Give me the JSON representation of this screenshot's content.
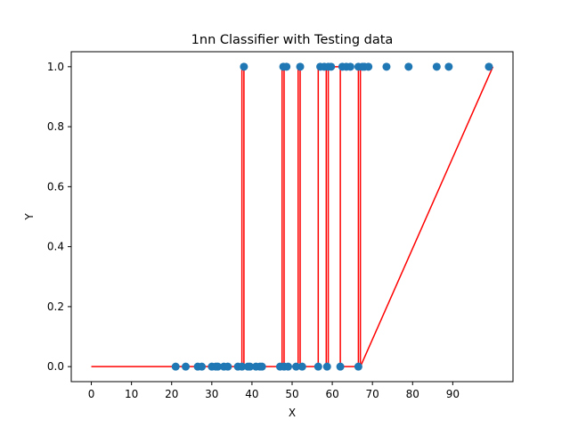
{
  "chart_data": {
    "type": "line",
    "title": "1nn Classifier with Testing data",
    "xlabel": "X",
    "ylabel": "Y",
    "xlim": [
      -5,
      105
    ],
    "ylim": [
      -0.05,
      1.05
    ],
    "xticks": [
      0,
      10,
      20,
      30,
      40,
      50,
      60,
      70,
      80,
      90
    ],
    "xtick_labels": [
      "0",
      "10",
      "20",
      "30",
      "40",
      "50",
      "60",
      "70",
      "80",
      "90"
    ],
    "yticks": [
      0.0,
      0.2,
      0.4,
      0.6,
      0.8,
      1.0
    ],
    "ytick_labels": [
      "0.0",
      "0.2",
      "0.4",
      "0.6",
      "0.8",
      "1.0"
    ],
    "grid": false,
    "colors": {
      "line": "#ff0000",
      "points": "#1f77b4"
    },
    "step_line": {
      "x": [
        0,
        37.5,
        37.5,
        38,
        38,
        47.5,
        47.5,
        48,
        48,
        51.5,
        51.5,
        52,
        52,
        56.5,
        56.5,
        58.5,
        58.5,
        59,
        59,
        62,
        62,
        66.5,
        66.5,
        67,
        67,
        100
      ],
      "y": [
        0,
        0,
        1,
        1,
        0,
        0,
        1,
        1,
        0,
        0,
        1,
        1,
        0,
        0,
        1,
        1,
        0,
        0,
        1,
        1,
        0,
        0,
        1,
        1,
        0,
        1
      ]
    },
    "series": [
      {
        "values": [
          [
            21,
            0
          ],
          [
            23.5,
            0
          ],
          [
            26.5,
            0
          ],
          [
            27.5,
            0
          ],
          [
            30,
            0
          ],
          [
            31,
            0
          ],
          [
            31.5,
            0
          ],
          [
            33,
            0
          ],
          [
            34,
            0
          ],
          [
            36.5,
            0
          ],
          [
            37.5,
            0
          ],
          [
            39,
            0
          ],
          [
            39.5,
            0
          ],
          [
            41,
            0
          ],
          [
            42,
            0
          ],
          [
            42.5,
            0
          ],
          [
            38,
            1
          ],
          [
            47,
            0
          ],
          [
            48,
            0
          ],
          [
            49,
            0
          ],
          [
            47.8,
            1
          ],
          [
            48.6,
            1
          ],
          [
            51,
            0
          ],
          [
            52.5,
            0
          ],
          [
            52,
            1
          ],
          [
            56.5,
            0
          ],
          [
            57,
            1
          ],
          [
            58,
            1
          ],
          [
            59,
            1
          ],
          [
            59.7,
            1
          ],
          [
            58.7,
            0
          ],
          [
            62,
            0
          ],
          [
            62.5,
            1
          ],
          [
            63.5,
            1
          ],
          [
            64.5,
            1
          ],
          [
            66.5,
            0
          ],
          [
            66.5,
            1
          ],
          [
            67.5,
            1
          ],
          [
            68,
            1
          ],
          [
            69,
            1
          ],
          [
            73.5,
            1
          ],
          [
            79,
            1
          ],
          [
            86,
            1
          ],
          [
            89,
            1
          ],
          [
            99,
            1
          ]
        ]
      }
    ]
  }
}
